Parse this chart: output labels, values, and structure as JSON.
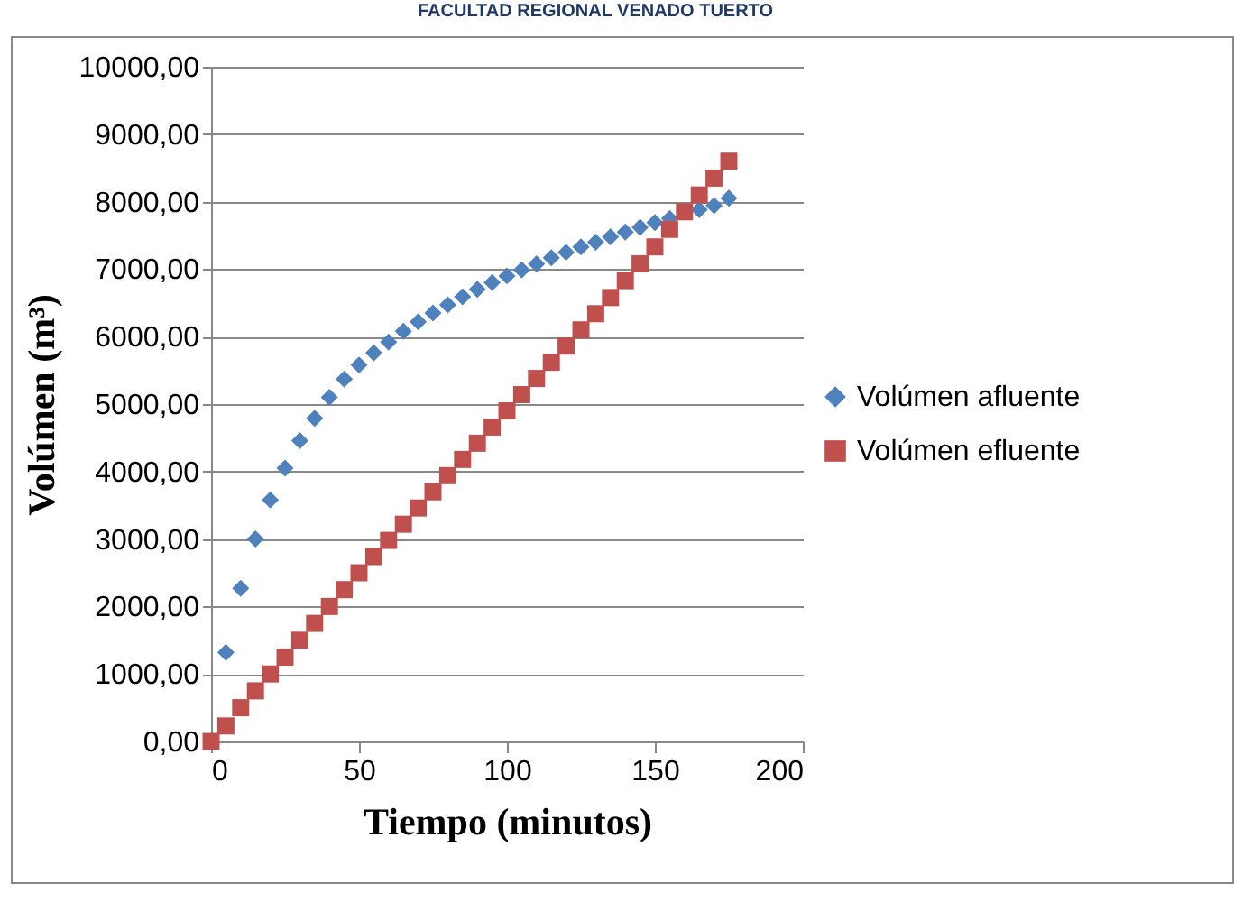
{
  "chart_data": {
    "type": "scatter",
    "xlabel": "Tiempo (minutos)",
    "ylabel": "Volúmen (m³)",
    "annotations": [
      "FACULTAD REGIONAL VENADO TUERTO"
    ],
    "xlim": [
      0,
      200
    ],
    "xticks": [
      0,
      50,
      100,
      150,
      200
    ],
    "ylim": [
      0,
      10000
    ],
    "yticks": [
      {
        "value": 0,
        "label": "0,00"
      },
      {
        "value": 1000,
        "label": "1000,00"
      },
      {
        "value": 2000,
        "label": "2000,00"
      },
      {
        "value": 3000,
        "label": "3000,00"
      },
      {
        "value": 4000,
        "label": "4000,00"
      },
      {
        "value": 5000,
        "label": "5000,00"
      },
      {
        "value": 6000,
        "label": "6000,00"
      },
      {
        "value": 7000,
        "label": "7000,00"
      },
      {
        "value": 8000,
        "label": "8000,00"
      },
      {
        "value": 9000,
        "label": "9000,00"
      },
      {
        "value": 10000,
        "label": "10000,00"
      }
    ],
    "grid": "y",
    "legend": "right",
    "series": [
      {
        "name": "Volúmen afluente",
        "color": "#4f81bd",
        "marker": "diamond",
        "x": [
          5,
          10,
          15,
          20,
          25,
          30,
          35,
          40,
          45,
          50,
          55,
          60,
          65,
          70,
          75,
          80,
          85,
          90,
          95,
          100,
          105,
          110,
          115,
          120,
          125,
          130,
          135,
          140,
          145,
          150,
          155,
          165,
          170,
          175
        ],
        "values": [
          1320,
          2270,
          3000,
          3580,
          4050,
          4460,
          4790,
          5100,
          5370,
          5580,
          5760,
          5920,
          6080,
          6220,
          6350,
          6470,
          6590,
          6700,
          6800,
          6900,
          6990,
          7080,
          7170,
          7250,
          7330,
          7400,
          7480,
          7550,
          7620,
          7690,
          7750,
          7880,
          7940,
          8050
        ]
      },
      {
        "name": "Volúmen efluente",
        "color": "#c0504d",
        "marker": "square",
        "x": [
          0,
          5,
          10,
          15,
          20,
          25,
          30,
          35,
          40,
          45,
          50,
          55,
          60,
          65,
          70,
          75,
          80,
          85,
          90,
          95,
          100,
          105,
          110,
          115,
          120,
          125,
          130,
          135,
          140,
          145,
          150,
          155,
          160,
          165,
          170,
          175
        ],
        "values": [
          0,
          230,
          500,
          750,
          1000,
          1250,
          1500,
          1750,
          2000,
          2250,
          2500,
          2740,
          2980,
          3220,
          3460,
          3700,
          3940,
          4180,
          4420,
          4660,
          4900,
          5140,
          5380,
          5620,
          5860,
          6100,
          6340,
          6580,
          6830,
          7080,
          7330,
          7590,
          7850,
          8100,
          8350,
          8600
        ]
      }
    ]
  }
}
